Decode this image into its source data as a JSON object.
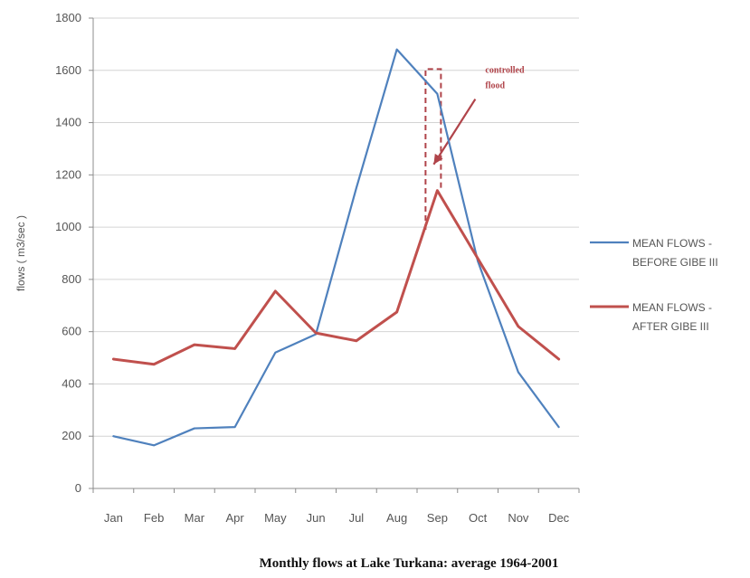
{
  "chart_data": {
    "type": "line",
    "title": "Monthly flows at Lake Turkana: average 1964-2001",
    "ylabel": "flows ( m3/sec )",
    "xlabel": "",
    "ylim": [
      0,
      1800
    ],
    "yticks": [
      0,
      200,
      400,
      600,
      800,
      1000,
      1200,
      1400,
      1600,
      1800
    ],
    "grid": true,
    "legend_position": "right",
    "categories": [
      "Jan",
      "Feb",
      "Mar",
      "Apr",
      "May",
      "Jun",
      "Jul",
      "Aug",
      "Sep",
      "Oct",
      "Nov",
      "Dec"
    ],
    "series": [
      {
        "name_lines": [
          "MEAN FLOWS -",
          "BEFORE GIBE III"
        ],
        "color": "#4f81bd",
        "values": [
          200,
          165,
          230,
          235,
          520,
          590,
          1150,
          1680,
          1510,
          870,
          445,
          235
        ]
      },
      {
        "name_lines": [
          "MEAN FLOWS -",
          "AFTER GIBE III"
        ],
        "color": "#c0504d",
        "values": [
          495,
          475,
          550,
          535,
          755,
          595,
          565,
          675,
          1140,
          880,
          620,
          495
        ]
      }
    ],
    "annotation": {
      "lines": [
        "controlled",
        "flood"
      ],
      "color": "#b0444a"
    }
  }
}
